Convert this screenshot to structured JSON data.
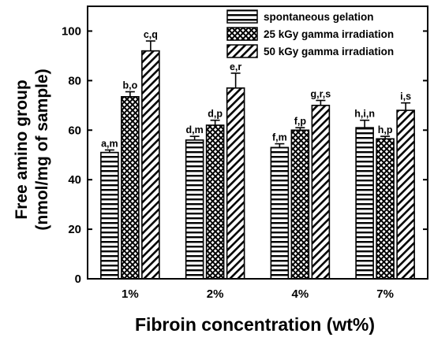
{
  "chart_data": {
    "type": "bar",
    "title": "",
    "xlabel": "Fibroin concentration (wt%)",
    "ylabel_line1": "Free amino group",
    "ylabel_line2": "(nmol/mg of sample)",
    "categories": [
      "1%",
      "2%",
      "4%",
      "7%"
    ],
    "ylim": [
      0,
      110
    ],
    "yticks": [
      "0",
      "20",
      "40",
      "60",
      "80",
      "100"
    ],
    "legend_position": "top-right",
    "grid": false,
    "series": [
      {
        "name": "spontaneous gelation",
        "pattern": "horizontal-stripes",
        "values": [
          51,
          56,
          53,
          61
        ],
        "errors": [
          1,
          1.5,
          1.5,
          3
        ],
        "labels": [
          "a,m",
          "d,m",
          "f,m",
          "h,i,n"
        ]
      },
      {
        "name": "25 kGy gamma irradiation",
        "pattern": "crosshatch",
        "values": [
          73.5,
          62,
          60,
          56.5
        ],
        "errors": [
          2,
          2,
          1,
          1
        ],
        "labels": [
          "b,o",
          "d,p",
          "f,p",
          "h,p"
        ]
      },
      {
        "name": "50 kGy gamma irradiation",
        "pattern": "diagonal-stripes",
        "values": [
          92,
          77,
          70,
          68
        ],
        "errors": [
          4,
          6,
          2,
          3
        ],
        "labels": [
          "c,q",
          "e,r",
          "g,r,s",
          "i,s"
        ]
      }
    ]
  }
}
